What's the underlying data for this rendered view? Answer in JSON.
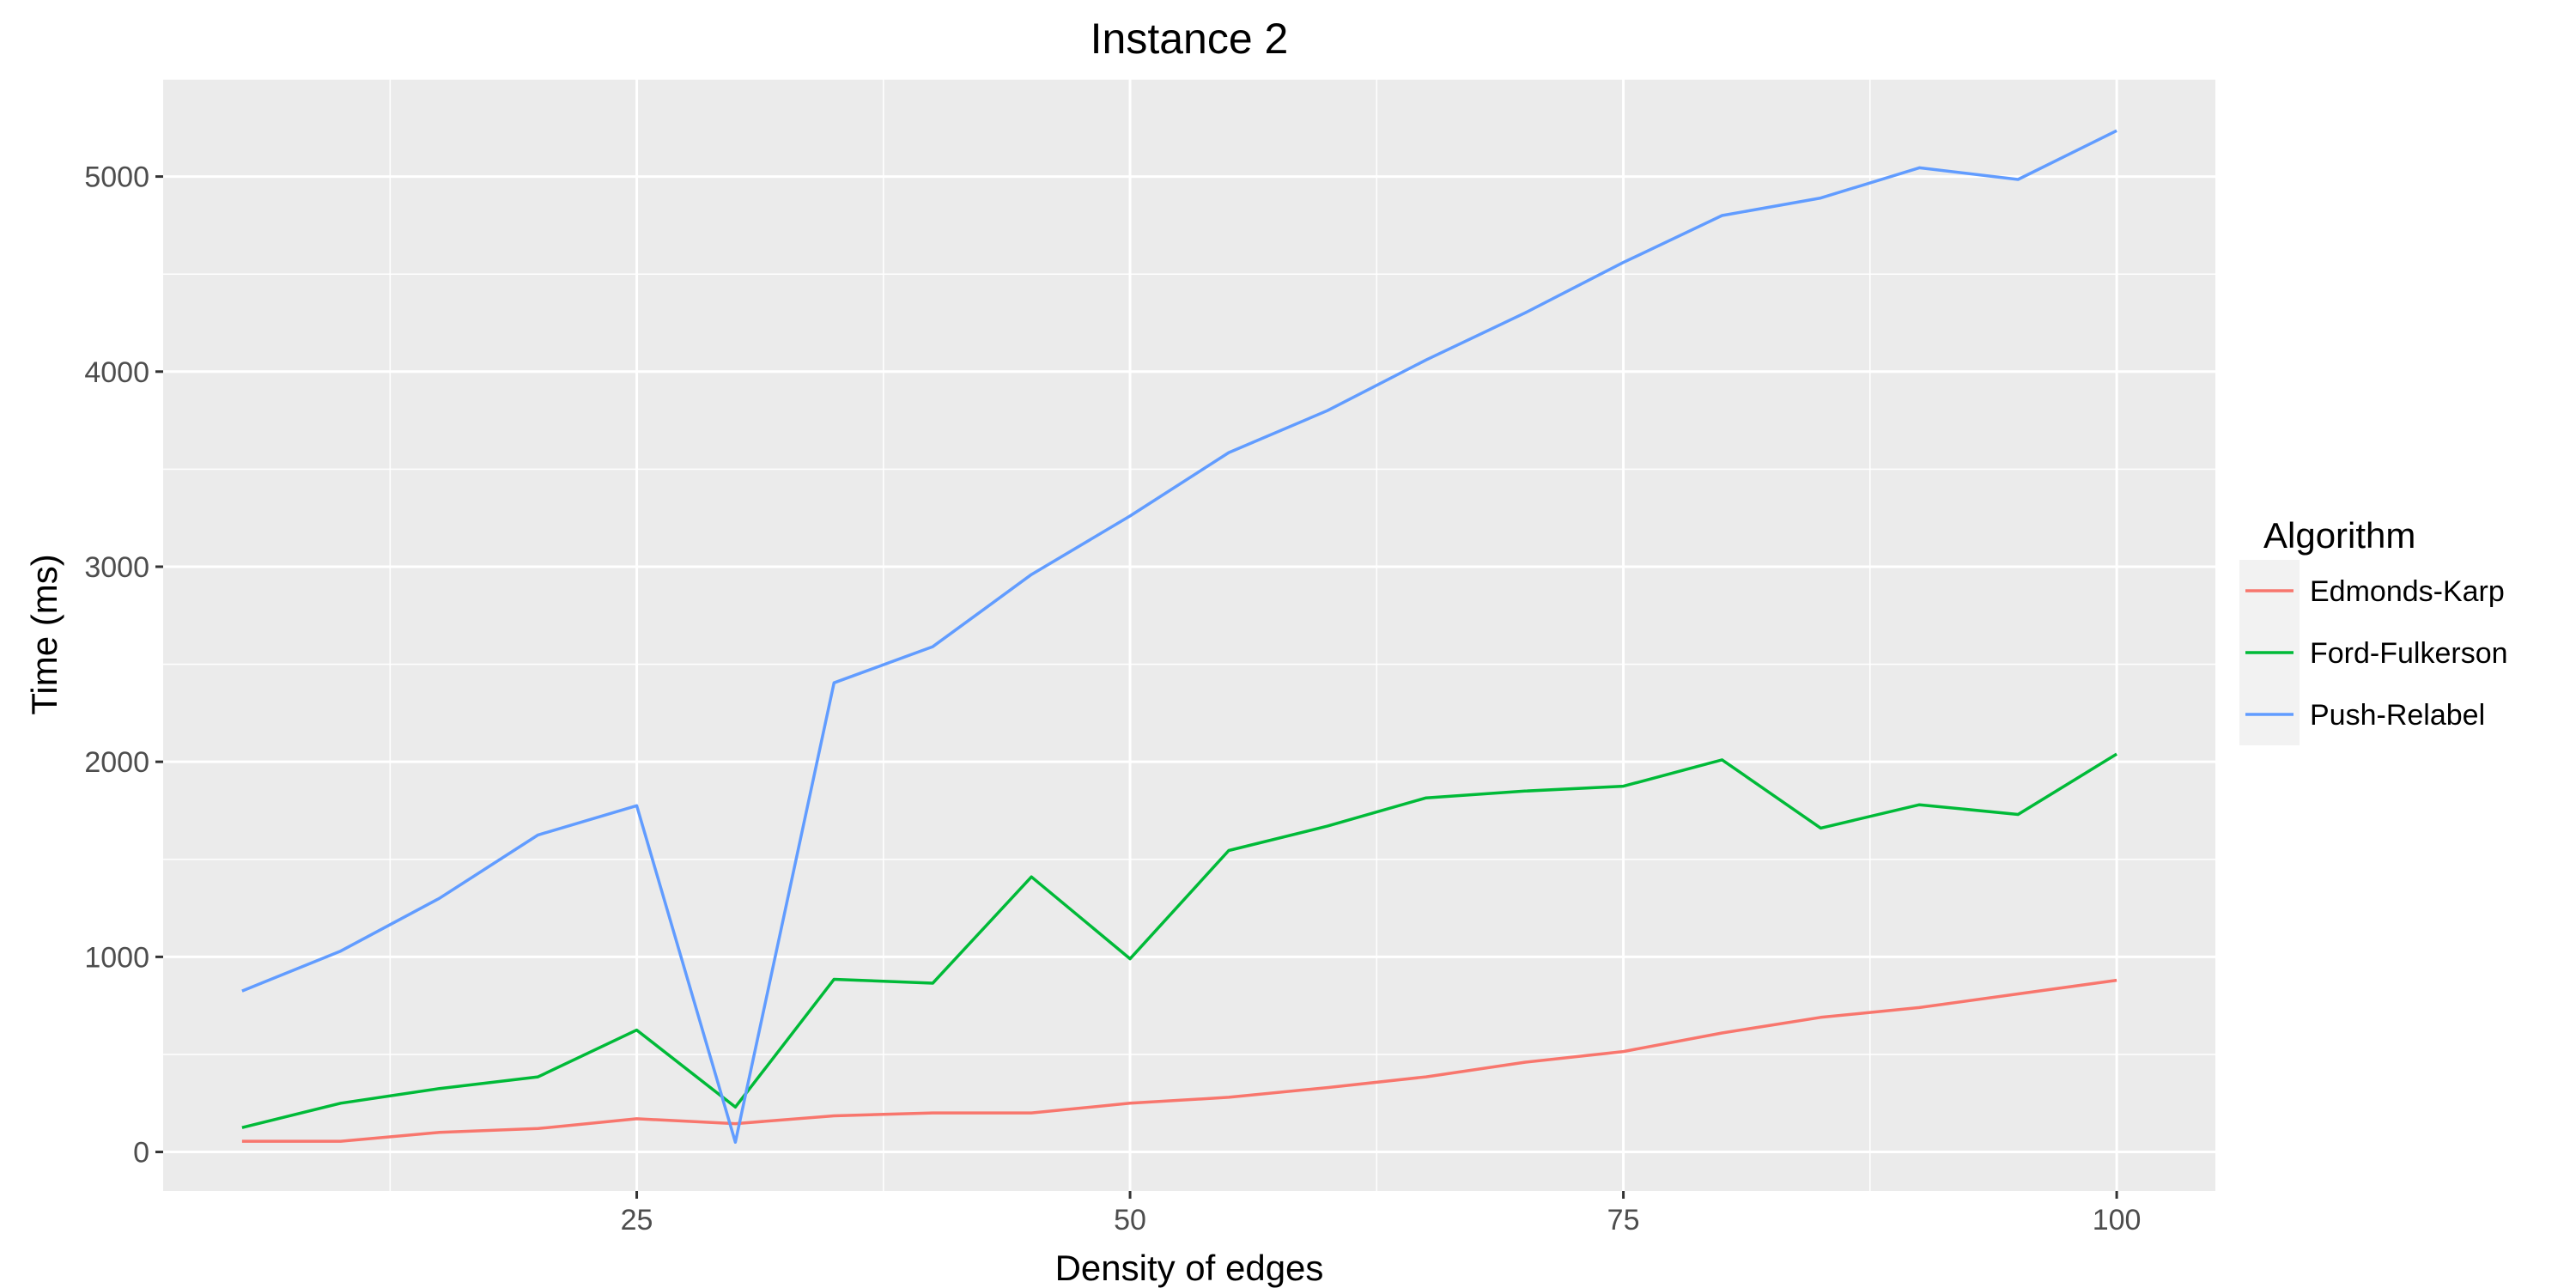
{
  "chart_data": {
    "type": "line",
    "title": "Instance 2",
    "xlabel": "Density of edges",
    "ylabel": "Time (ms)",
    "xlim": [
      1,
      105
    ],
    "ylim": [
      -200,
      5500
    ],
    "x_ticks": [
      25,
      50,
      75,
      100
    ],
    "y_ticks": [
      0,
      1000,
      2000,
      3000,
      4000,
      5000
    ],
    "grid": true,
    "legend": {
      "title": "Algorithm",
      "position": "right"
    },
    "x": [
      5,
      10,
      15,
      20,
      25,
      30,
      35,
      40,
      45,
      50,
      55,
      60,
      65,
      70,
      75,
      80,
      85,
      90,
      95,
      100
    ],
    "series": [
      {
        "name": "Edmonds-Karp",
        "color": "#F8766D",
        "values": [
          55,
          55,
          100,
          120,
          170,
          145,
          185,
          200,
          200,
          250,
          280,
          330,
          385,
          460,
          515,
          610,
          690,
          740,
          810,
          880
        ]
      },
      {
        "name": "Ford-Fulkerson",
        "color": "#00BA38",
        "values": [
          125,
          250,
          325,
          385,
          625,
          230,
          885,
          865,
          1410,
          990,
          1545,
          1670,
          1815,
          1850,
          1875,
          2010,
          1660,
          1780,
          1730,
          2040
        ]
      },
      {
        "name": "Push-Relabel",
        "color": "#619CFF",
        "values": [
          825,
          1030,
          1300,
          1625,
          1775,
          50,
          2405,
          2590,
          2960,
          3260,
          3585,
          3800,
          4060,
          4300,
          4560,
          4800,
          4890,
          5045,
          4985,
          5235
        ]
      }
    ]
  }
}
